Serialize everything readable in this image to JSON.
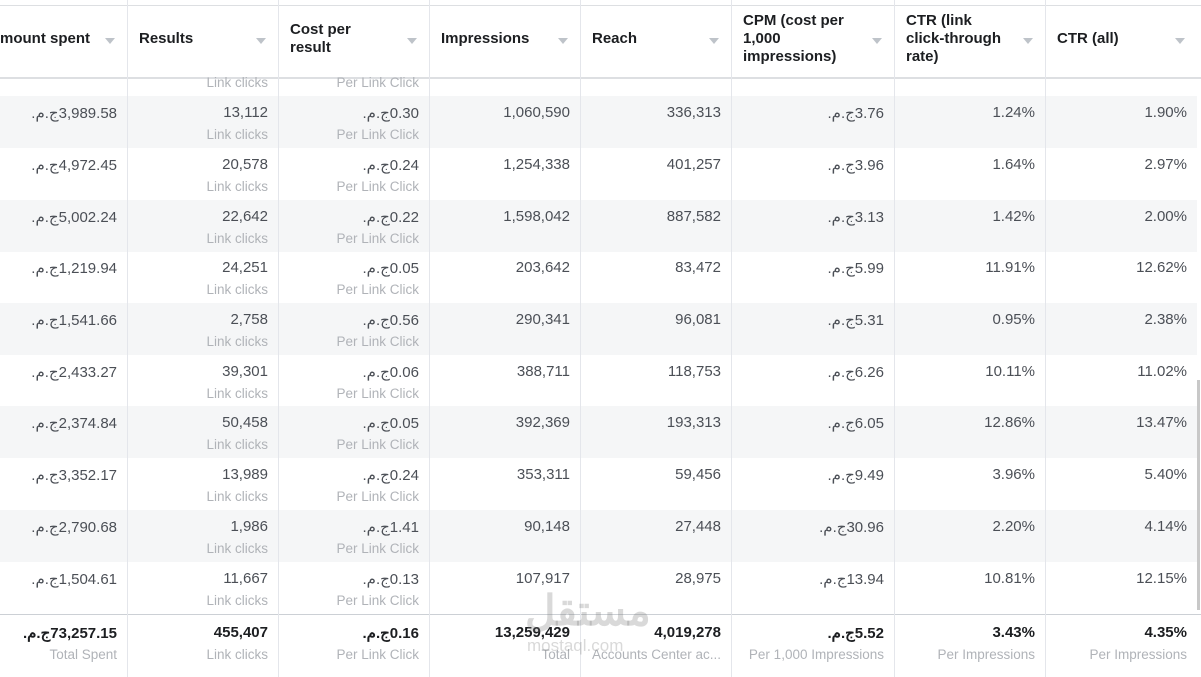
{
  "table": {
    "columns": [
      "mount spent",
      "Results",
      "Cost per result",
      "Impressions",
      "Reach",
      "CPM (cost per 1,000 impressions)",
      "CTR (link click-through rate)",
      "CTR (all)"
    ],
    "partial_row": {
      "1": "Link clicks",
      "2": "Per Link Click"
    },
    "rows": [
      [
        "3,989.58ج.م.",
        [
          "13,112",
          "Link clicks"
        ],
        [
          "0.30ج.م.",
          "Per Link Click"
        ],
        "1,060,590",
        "336,313",
        "3.76ج.م.",
        "1.24%",
        "1.90%"
      ],
      [
        "4,972.45ج.م.",
        [
          "20,578",
          "Link clicks"
        ],
        [
          "0.24ج.م.",
          "Per Link Click"
        ],
        "1,254,338",
        "401,257",
        "3.96ج.م.",
        "1.64%",
        "2.97%"
      ],
      [
        "5,002.24ج.م.",
        [
          "22,642",
          "Link clicks"
        ],
        [
          "0.22ج.م.",
          "Per Link Click"
        ],
        "1,598,042",
        "887,582",
        "3.13ج.م.",
        "1.42%",
        "2.00%"
      ],
      [
        "1,219.94ج.م.",
        [
          "24,251",
          "Link clicks"
        ],
        [
          "0.05ج.م.",
          "Per Link Click"
        ],
        "203,642",
        "83,472",
        "5.99ج.م.",
        "11.91%",
        "12.62%"
      ],
      [
        "1,541.66ج.م.",
        [
          "2,758",
          "Link clicks"
        ],
        [
          "0.56ج.م.",
          "Per Link Click"
        ],
        "290,341",
        "96,081",
        "5.31ج.م.",
        "0.95%",
        "2.38%"
      ],
      [
        "2,433.27ج.م.",
        [
          "39,301",
          "Link clicks"
        ],
        [
          "0.06ج.م.",
          "Per Link Click"
        ],
        "388,711",
        "118,753",
        "6.26ج.م.",
        "10.11%",
        "11.02%"
      ],
      [
        "2,374.84ج.م.",
        [
          "50,458",
          "Link clicks"
        ],
        [
          "0.05ج.م.",
          "Per Link Click"
        ],
        "392,369",
        "193,313",
        "6.05ج.م.",
        "12.86%",
        "13.47%"
      ],
      [
        "3,352.17ج.م.",
        [
          "13,989",
          "Link clicks"
        ],
        [
          "0.24ج.م.",
          "Per Link Click"
        ],
        "353,311",
        "59,456",
        "9.49ج.م.",
        "3.96%",
        "5.40%"
      ],
      [
        "2,790.68ج.م.",
        [
          "1,986",
          "Link clicks"
        ],
        [
          "1.41ج.م.",
          "Per Link Click"
        ],
        "90,148",
        "27,448",
        "30.96ج.م.",
        "2.20%",
        "4.14%"
      ],
      [
        "1,504.61ج.م.",
        [
          "11,667",
          "Link clicks"
        ],
        [
          "0.13ج.م.",
          "Per Link Click"
        ],
        "107,917",
        "28,975",
        "13.94ج.م.",
        "10.81%",
        "12.15%"
      ]
    ],
    "totals": [
      [
        "73,257.15ج.م.",
        "Total Spent"
      ],
      [
        "455,407",
        "Link clicks"
      ],
      [
        "0.16ج.م.",
        "Per Link Click"
      ],
      [
        "13,259,429",
        "Total"
      ],
      [
        "4,019,278",
        "Accounts Center ac..."
      ],
      [
        "5.52ج.م.",
        "Per 1,000 Impressions"
      ],
      [
        "3.43%",
        "Per Impressions"
      ],
      [
        "4.35%",
        "Per Impressions"
      ]
    ]
  },
  "watermark": {
    "arabic": "مستقل",
    "latin": "mostaql.com"
  }
}
